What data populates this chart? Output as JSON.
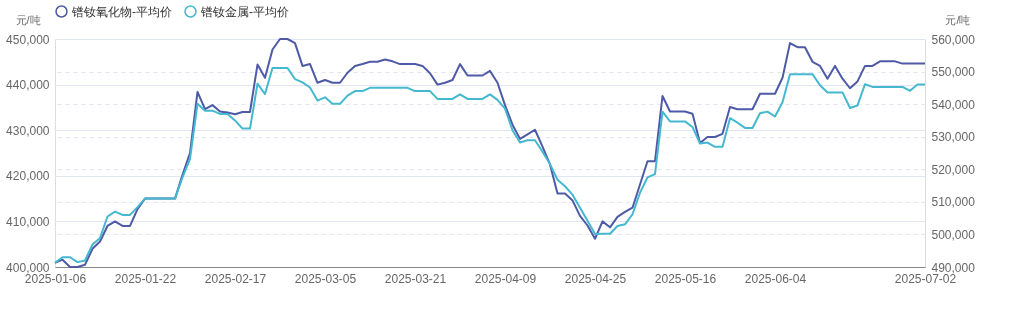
{
  "chart_data": {
    "type": "line",
    "categories": [
      "2025-01-06",
      null,
      null,
      null,
      null,
      null,
      null,
      null,
      null,
      null,
      null,
      null,
      "2025-01-22",
      null,
      null,
      null,
      null,
      null,
      null,
      null,
      null,
      null,
      null,
      null,
      "2025-02-17",
      null,
      null,
      null,
      null,
      null,
      null,
      null,
      null,
      null,
      null,
      null,
      "2025-03-05",
      null,
      null,
      null,
      null,
      null,
      null,
      null,
      null,
      null,
      null,
      null,
      "2025-03-21",
      null,
      null,
      null,
      null,
      null,
      null,
      null,
      null,
      null,
      null,
      null,
      "2025-04-09",
      null,
      null,
      null,
      null,
      null,
      null,
      null,
      null,
      null,
      null,
      null,
      "2025-04-25",
      null,
      null,
      null,
      null,
      null,
      null,
      null,
      null,
      null,
      null,
      null,
      "2025-05-16",
      null,
      null,
      null,
      null,
      null,
      null,
      null,
      null,
      null,
      null,
      null,
      "2025-06-04",
      null,
      null,
      null,
      null,
      null,
      null,
      null,
      null,
      null,
      null,
      null,
      null,
      null,
      null,
      null,
      null,
      null,
      null,
      null,
      "2025-07-02"
    ],
    "series": [
      {
        "name": "镨钕氧化物-平均价",
        "color": "#4e5aa5",
        "values": [
          400900,
          401600,
          400000,
          400000,
          400500,
          404000,
          405600,
          409000,
          410000,
          409000,
          409000,
          412700,
          415000,
          415000,
          415000,
          415000,
          415000,
          420200,
          425000,
          438400,
          434600,
          435500,
          434100,
          433900,
          433500,
          434000,
          434000,
          444400,
          441500,
          447700,
          450000,
          450000,
          449100,
          444100,
          444500,
          440400,
          441000,
          440400,
          440400,
          442600,
          444100,
          444500,
          445000,
          445000,
          445500,
          445100,
          444500,
          444500,
          444500,
          444100,
          442500,
          440000,
          440400,
          441000,
          444500,
          442000,
          442000,
          442000,
          443000,
          440400,
          435500,
          431200,
          428100,
          429100,
          430100,
          426400,
          422500,
          416100,
          416100,
          414600,
          411200,
          409100,
          406200,
          410000,
          408700,
          411000,
          412100,
          413000,
          418100,
          423200,
          423200,
          437500,
          434100,
          434100,
          434100,
          433600,
          427200,
          428500,
          428500,
          429200,
          435100,
          434600,
          434600,
          434600,
          438000,
          438000,
          438000,
          441500,
          449100,
          448200,
          448200,
          445000,
          444100,
          441300,
          444100,
          441300,
          439200,
          440700,
          444100,
          444100,
          445100,
          445100,
          445100,
          444600,
          444600,
          444600,
          444600
        ]
      },
      {
        "name": "镨钕金属-平均价",
        "color": "#44b8cf",
        "axis": "y2",
        "values": [
          491300,
          493000,
          493000,
          491500,
          492000,
          496900,
          498900,
          505500,
          507000,
          506000,
          506000,
          508400,
          511000,
          511000,
          511000,
          511000,
          511000,
          517500,
          523200,
          540100,
          538000,
          538000,
          537000,
          537000,
          535000,
          532500,
          532500,
          546300,
          543100,
          551100,
          551100,
          551100,
          547700,
          546700,
          545100,
          541100,
          542100,
          540100,
          540100,
          542600,
          544000,
          544000,
          545000,
          545000,
          545000,
          545000,
          545000,
          545000,
          544000,
          544000,
          544000,
          541600,
          541600,
          541600,
          543000,
          541600,
          541600,
          541600,
          543000,
          541300,
          538600,
          532000,
          528200,
          528900,
          528900,
          525400,
          521600,
          516800,
          514800,
          512200,
          508200,
          504200,
          500100,
          500200,
          500200,
          502600,
          503100,
          506200,
          512800,
          517500,
          518500,
          537700,
          534700,
          534700,
          534700,
          533000,
          527900,
          528200,
          526900,
          526900,
          535700,
          534300,
          532700,
          532700,
          537200,
          537700,
          536200,
          540600,
          549200,
          549200,
          549200,
          549200,
          545800,
          543600,
          543600,
          543600,
          538800,
          539600,
          546100,
          545300,
          545300,
          545300,
          545300,
          545300,
          544100,
          546000,
          546000
        ]
      }
    ],
    "ylabel": "元/吨",
    "y2label": "元/吨",
    "ylim": [
      400000,
      450000
    ],
    "yticks": [
      {
        "value": 400000,
        "label": "400,000"
      },
      {
        "value": 410000,
        "label": "410,000"
      },
      {
        "value": 420000,
        "label": "420,000"
      },
      {
        "value": 430000,
        "label": "430,000"
      },
      {
        "value": 440000,
        "label": "440,000"
      },
      {
        "value": 450000,
        "label": "450,000"
      }
    ],
    "y2lim": [
      490000,
      560000
    ],
    "y2ticks": [
      {
        "value": 490000,
        "label": "490,000"
      },
      {
        "value": 500000,
        "label": "500,000"
      },
      {
        "value": 510000,
        "label": "510,000"
      },
      {
        "value": 520000,
        "label": "520,000"
      },
      {
        "value": 530000,
        "label": "530,000"
      },
      {
        "value": 540000,
        "label": "540,000"
      },
      {
        "value": 550000,
        "label": "550,000"
      },
      {
        "value": 560000,
        "label": "560,000"
      }
    ],
    "grid": true,
    "legend": "top",
    "line_style": "solid"
  }
}
